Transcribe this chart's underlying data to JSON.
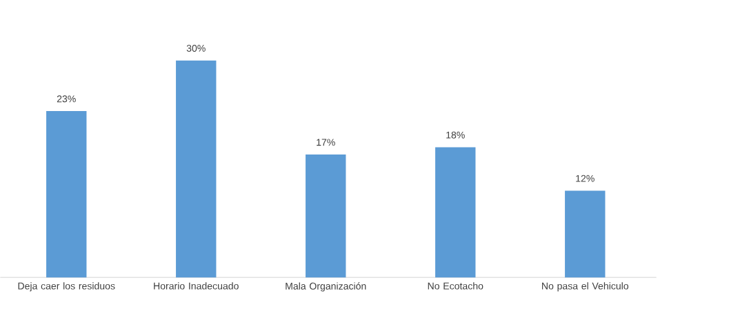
{
  "chart_data": {
    "type": "bar",
    "categories": [
      "Deja caer los residuos",
      "Horario Inadecuado",
      "Mala Organización",
      "No Ecotacho",
      "No pasa el Vehiculo"
    ],
    "values": [
      23,
      30,
      17,
      18,
      12
    ],
    "value_labels": [
      "23%",
      "30%",
      "17%",
      "18%",
      "12%"
    ],
    "color": "#5b9bd5"
  }
}
